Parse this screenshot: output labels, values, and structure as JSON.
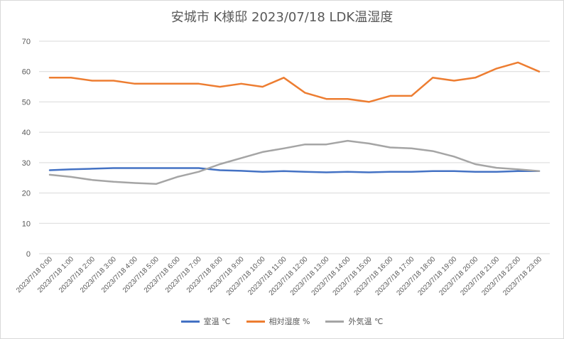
{
  "chart_data": {
    "type": "line",
    "title": "安城市 K様邸 2023/07/18 LDK温湿度",
    "categories": [
      "2023/7/18 0:00",
      "2023/7/18 1:00",
      "2023/7/18 2:00",
      "2023/7/18 3:00",
      "2023/7/18 4:00",
      "2023/7/18 5:00",
      "2023/7/18 6:00",
      "2023/7/18 7:00",
      "2023/7/18 8:00",
      "2023/7/18 9:00",
      "2023/7/18 10:00",
      "2023/7/18 11:00",
      "2023/7/18 12:00",
      "2023/7/18 13:00",
      "2023/7/18 14:00",
      "2023/7/18 15:00",
      "2023/7/18 16:00",
      "2023/7/18 17:00",
      "2023/7/18 18:00",
      "2023/7/18 19:00",
      "2023/7/18 20:00",
      "2023/7/18 21:00",
      "2023/7/18 22:00",
      "2023/7/18 23:00"
    ],
    "yticks": [
      0,
      10,
      20,
      30,
      40,
      50,
      60,
      70
    ],
    "ylim": [
      0,
      70
    ],
    "grid": true,
    "legend_position": "bottom",
    "series": [
      {
        "name": "室温 ℃",
        "color": "#4472c4",
        "values": [
          27.5,
          27.8,
          28.0,
          28.2,
          28.2,
          28.2,
          28.2,
          28.2,
          27.5,
          27.3,
          27.0,
          27.2,
          27.0,
          26.8,
          27.0,
          26.8,
          27.0,
          27.0,
          27.2,
          27.2,
          27.0,
          27.0,
          27.2,
          27.2
        ]
      },
      {
        "name": "相対湿度 %",
        "color": "#ed7d31",
        "values": [
          58,
          58,
          57,
          57,
          56,
          56,
          56,
          56,
          55,
          56,
          55,
          58,
          53,
          51,
          51,
          50,
          52,
          52,
          58,
          57,
          58,
          61,
          63,
          60
        ]
      },
      {
        "name": "外気温 ℃",
        "color": "#a5a5a5",
        "values": [
          26.0,
          25.3,
          24.3,
          23.7,
          23.3,
          23.0,
          25.3,
          27.0,
          29.5,
          31.5,
          33.5,
          34.7,
          36.0,
          36.0,
          37.2,
          36.3,
          35.0,
          34.7,
          33.8,
          32.0,
          29.5,
          28.3,
          27.8,
          27.2
        ]
      }
    ]
  }
}
